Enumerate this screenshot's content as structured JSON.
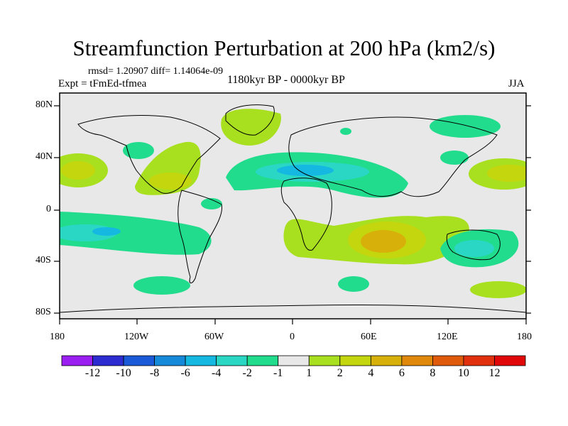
{
  "plot": {
    "title": "Streamfunction Perturbation at 200 hPa (km2/s)",
    "stats": "rmsd= 1.20907 diff= 1.14064e-09",
    "experiment": "Expt = tFmEd-tfmea",
    "period": "1180kyr BP - 0000kyr BP",
    "season": "JJA"
  },
  "axes": {
    "lat_labels": [
      "80N",
      "40N",
      "0",
      "40S",
      "80S"
    ],
    "lon_labels": [
      "180",
      "120W",
      "60W",
      "0",
      "60E",
      "120E",
      "180"
    ]
  },
  "colorbar": {
    "labels": [
      "-12",
      "-10",
      "-8",
      "-6",
      "-4",
      "-2",
      "-1",
      "1",
      "2",
      "4",
      "6",
      "8",
      "10",
      "12"
    ],
    "colors": [
      "#9a1ff0",
      "#2c2cd0",
      "#1a5ad8",
      "#148ad8",
      "#14b8e0",
      "#2ad7c4",
      "#22dc8e",
      "#e8e8e8",
      "#a8e020",
      "#c4d60e",
      "#d8b00a",
      "#e0880a",
      "#e05a0c",
      "#e0300e",
      "#e00808"
    ]
  }
}
